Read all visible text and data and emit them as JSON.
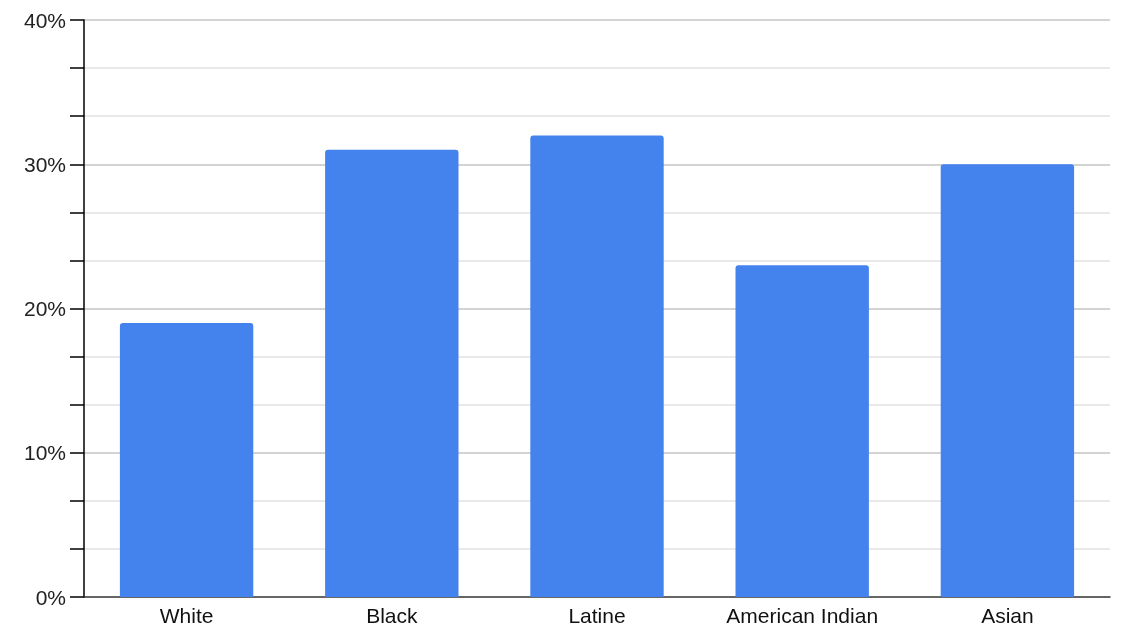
{
  "chart_data": {
    "type": "bar",
    "categories": [
      "White",
      "Black",
      "Latine",
      "American Indian",
      "Asian"
    ],
    "values": [
      19,
      31,
      32,
      23,
      30
    ],
    "color": "#4482ee",
    "ylim": [
      0,
      40
    ],
    "yticks": [
      {
        "value": 0,
        "label": "0%"
      },
      {
        "value": 3.333,
        "label": null
      },
      {
        "value": 6.667,
        "label": null
      },
      {
        "value": 10,
        "label": "10%"
      },
      {
        "value": 13.333,
        "label": null
      },
      {
        "value": 16.667,
        "label": null
      },
      {
        "value": 20,
        "label": "20%"
      },
      {
        "value": 23.333,
        "label": null
      },
      {
        "value": 26.667,
        "label": null
      },
      {
        "value": 30,
        "label": "30%"
      },
      {
        "value": 33.333,
        "label": null
      },
      {
        "value": 36.667,
        "label": null
      },
      {
        "value": 40,
        "label": "40%"
      }
    ],
    "grid": true
  }
}
